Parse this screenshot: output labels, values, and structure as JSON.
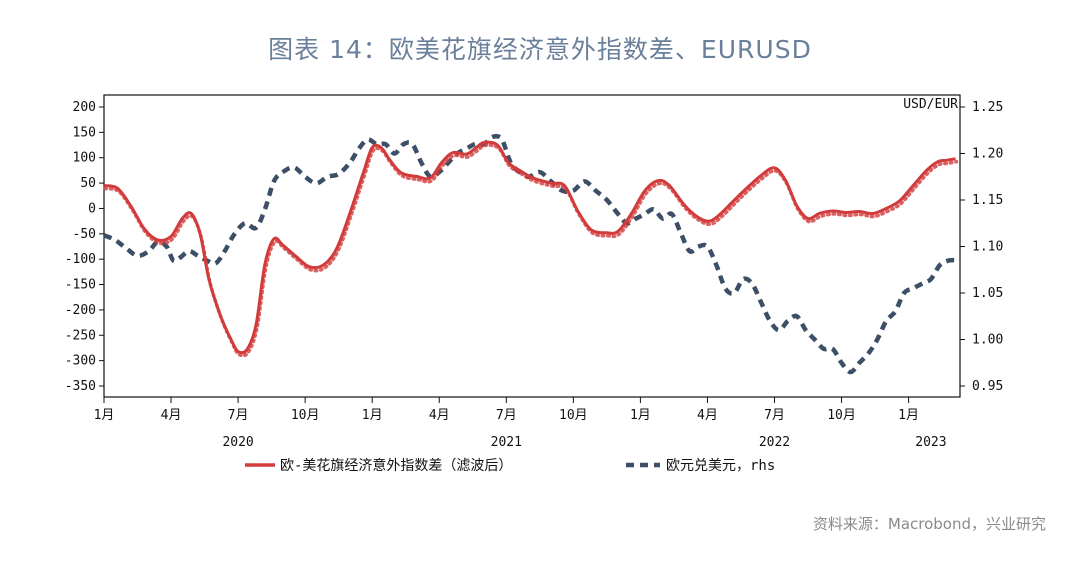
{
  "title": "图表 14：欧美花旗经济意外指数差、EURUSD",
  "source": "资料来源：Macrobond，兴业研究",
  "chart_data": {
    "type": "line",
    "left_axis": {
      "ylim": [
        -350,
        200
      ],
      "ticks": [
        200,
        150,
        100,
        50,
        0,
        -50,
        -100,
        -150,
        -200,
        -250,
        -300,
        -350
      ]
    },
    "right_axis": {
      "label": "USD/EUR",
      "ylim": [
        0.95,
        1.25
      ],
      "ticks": [
        1.25,
        1.2,
        1.15,
        1.1,
        1.05,
        1.0,
        0.95
      ]
    },
    "x_ticks": [
      {
        "label": "1月",
        "t": 0
      },
      {
        "label": "4月",
        "t": 3
      },
      {
        "label": "7月",
        "t": 6
      },
      {
        "label": "10月",
        "t": 9
      },
      {
        "label": "1月",
        "t": 12
      },
      {
        "label": "4月",
        "t": 15
      },
      {
        "label": "7月",
        "t": 18
      },
      {
        "label": "10月",
        "t": 21
      },
      {
        "label": "1月",
        "t": 24
      },
      {
        "label": "4月",
        "t": 27
      },
      {
        "label": "7月",
        "t": 30
      },
      {
        "label": "10月",
        "t": 33
      },
      {
        "label": "1月",
        "t": 36
      }
    ],
    "year_labels": [
      {
        "label": "2020",
        "t": 6
      },
      {
        "label": "2021",
        "t": 18
      },
      {
        "label": "2022",
        "t": 30
      },
      {
        "label": "2023",
        "t": 37
      }
    ],
    "x_range": [
      0,
      38.3
    ],
    "series": [
      {
        "name": "欧-美花旗经济意外指数差（滤波后）",
        "axis": "left",
        "color": "#d23b3b",
        "style": "solid",
        "points": [
          [
            0,
            45
          ],
          [
            0.6,
            40
          ],
          [
            1.2,
            5
          ],
          [
            1.8,
            -40
          ],
          [
            2.4,
            -62
          ],
          [
            3.0,
            -55
          ],
          [
            3.5,
            -20
          ],
          [
            3.9,
            -10
          ],
          [
            4.3,
            -50
          ],
          [
            4.7,
            -140
          ],
          [
            5.2,
            -210
          ],
          [
            5.7,
            -260
          ],
          [
            6.0,
            -282
          ],
          [
            6.4,
            -278
          ],
          [
            6.8,
            -230
          ],
          [
            7.2,
            -110
          ],
          [
            7.6,
            -60
          ],
          [
            8.0,
            -72
          ],
          [
            8.6,
            -95
          ],
          [
            9.2,
            -115
          ],
          [
            9.8,
            -112
          ],
          [
            10.4,
            -80
          ],
          [
            11.0,
            -10
          ],
          [
            11.6,
            70
          ],
          [
            12.0,
            120
          ],
          [
            12.4,
            120
          ],
          [
            12.8,
            95
          ],
          [
            13.3,
            70
          ],
          [
            14.0,
            63
          ],
          [
            14.6,
            60
          ],
          [
            15.1,
            90
          ],
          [
            15.6,
            110
          ],
          [
            16.2,
            107
          ],
          [
            16.6,
            118
          ],
          [
            17.0,
            130
          ],
          [
            17.6,
            125
          ],
          [
            18.1,
            90
          ],
          [
            18.6,
            75
          ],
          [
            19.2,
            60
          ],
          [
            20.0,
            50
          ],
          [
            20.6,
            45
          ],
          [
            21.2,
            -5
          ],
          [
            21.8,
            -42
          ],
          [
            22.5,
            -48
          ],
          [
            23.0,
            -45
          ],
          [
            23.6,
            -10
          ],
          [
            24.2,
            35
          ],
          [
            24.8,
            55
          ],
          [
            25.3,
            45
          ],
          [
            26.0,
            5
          ],
          [
            26.6,
            -18
          ],
          [
            27.1,
            -25
          ],
          [
            27.6,
            -10
          ],
          [
            28.4,
            25
          ],
          [
            29.4,
            65
          ],
          [
            30.0,
            80
          ],
          [
            30.5,
            55
          ],
          [
            31.0,
            5
          ],
          [
            31.5,
            -20
          ],
          [
            32.0,
            -10
          ],
          [
            32.6,
            -5
          ],
          [
            33.2,
            -8
          ],
          [
            33.8,
            -6
          ],
          [
            34.4,
            -10
          ],
          [
            35.0,
            0
          ],
          [
            35.6,
            15
          ],
          [
            36.2,
            45
          ],
          [
            36.8,
            75
          ],
          [
            37.3,
            92
          ],
          [
            37.7,
            95
          ],
          [
            38.1,
            98
          ]
        ]
      },
      {
        "name": "欧元兑美元，rhs",
        "axis": "right",
        "color": "#3c4f66",
        "style": "dashed",
        "points": [
          [
            0,
            1.112
          ],
          [
            0.5,
            1.107
          ],
          [
            1.0,
            1.098
          ],
          [
            1.5,
            1.09
          ],
          [
            2.0,
            1.095
          ],
          [
            2.4,
            1.105
          ],
          [
            2.8,
            1.1
          ],
          [
            3.1,
            1.085
          ],
          [
            3.4,
            1.088
          ],
          [
            3.8,
            1.095
          ],
          [
            4.2,
            1.09
          ],
          [
            4.6,
            1.085
          ],
          [
            5.0,
            1.082
          ],
          [
            5.4,
            1.095
          ],
          [
            5.8,
            1.112
          ],
          [
            6.3,
            1.125
          ],
          [
            6.8,
            1.12
          ],
          [
            7.2,
            1.14
          ],
          [
            7.6,
            1.17
          ],
          [
            8.0,
            1.18
          ],
          [
            8.5,
            1.185
          ],
          [
            9.0,
            1.175
          ],
          [
            9.5,
            1.168
          ],
          [
            10.0,
            1.175
          ],
          [
            10.5,
            1.178
          ],
          [
            11.0,
            1.19
          ],
          [
            11.4,
            1.205
          ],
          [
            11.8,
            1.215
          ],
          [
            12.2,
            1.21
          ],
          [
            12.6,
            1.21
          ],
          [
            13.0,
            1.2
          ],
          [
            13.4,
            1.21
          ],
          [
            13.8,
            1.21
          ],
          [
            14.2,
            1.19
          ],
          [
            14.6,
            1.175
          ],
          [
            15.0,
            1.18
          ],
          [
            15.4,
            1.19
          ],
          [
            15.8,
            1.2
          ],
          [
            16.2,
            1.205
          ],
          [
            16.6,
            1.21
          ],
          [
            17.0,
            1.21
          ],
          [
            17.4,
            1.218
          ],
          [
            17.8,
            1.215
          ],
          [
            18.2,
            1.19
          ],
          [
            18.6,
            1.18
          ],
          [
            19.0,
            1.175
          ],
          [
            19.5,
            1.18
          ],
          [
            20.0,
            1.17
          ],
          [
            20.5,
            1.16
          ],
          [
            21.0,
            1.16
          ],
          [
            21.5,
            1.17
          ],
          [
            22.0,
            1.16
          ],
          [
            22.5,
            1.15
          ],
          [
            23.0,
            1.135
          ],
          [
            23.4,
            1.125
          ],
          [
            23.8,
            1.13
          ],
          [
            24.2,
            1.135
          ],
          [
            24.6,
            1.14
          ],
          [
            25.0,
            1.13
          ],
          [
            25.4,
            1.135
          ],
          [
            25.8,
            1.115
          ],
          [
            26.2,
            1.095
          ],
          [
            26.6,
            1.1
          ],
          [
            27.0,
            1.1
          ],
          [
            27.4,
            1.08
          ],
          [
            27.8,
            1.055
          ],
          [
            28.2,
            1.05
          ],
          [
            28.6,
            1.065
          ],
          [
            29.0,
            1.06
          ],
          [
            29.4,
            1.04
          ],
          [
            29.8,
            1.02
          ],
          [
            30.2,
            1.01
          ],
          [
            30.6,
            1.02
          ],
          [
            31.0,
            1.025
          ],
          [
            31.4,
            1.01
          ],
          [
            31.8,
            1.0
          ],
          [
            32.2,
            0.99
          ],
          [
            32.6,
            0.99
          ],
          [
            33.0,
            0.975
          ],
          [
            33.4,
            0.965
          ],
          [
            33.8,
            0.975
          ],
          [
            34.2,
            0.985
          ],
          [
            34.6,
            1.0
          ],
          [
            35.0,
            1.02
          ],
          [
            35.4,
            1.03
          ],
          [
            35.8,
            1.05
          ],
          [
            36.2,
            1.055
          ],
          [
            36.6,
            1.06
          ],
          [
            37.0,
            1.065
          ],
          [
            37.4,
            1.08
          ],
          [
            37.8,
            1.085
          ],
          [
            38.2,
            1.085
          ]
        ]
      }
    ]
  }
}
